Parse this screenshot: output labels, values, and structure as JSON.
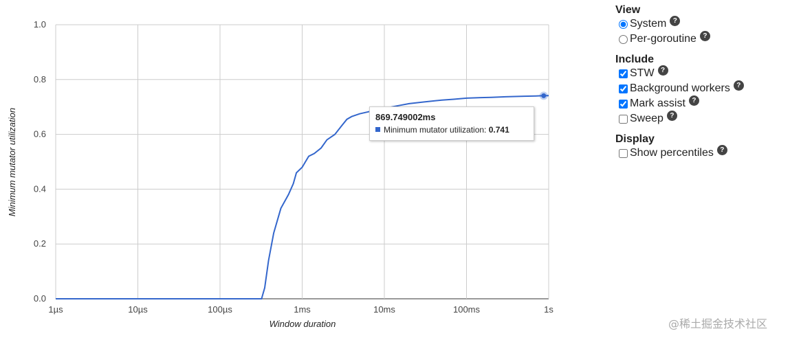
{
  "chart_data": {
    "type": "line",
    "title": "",
    "xlabel": "Window duration",
    "ylabel": "Minimum mutator utilization",
    "x_scale": "log",
    "xlim": [
      "1µs",
      "1s"
    ],
    "x_ticks": [
      "1µs",
      "10µs",
      "100µs",
      "1ms",
      "10ms",
      "100ms",
      "1s"
    ],
    "ylim": [
      0,
      1
    ],
    "y_ticks": [
      "0.0",
      "0.2",
      "0.4",
      "0.6",
      "0.8",
      "1.0"
    ],
    "grid": true,
    "series": [
      {
        "name": "Minimum mutator utilization",
        "color": "#3366cc",
        "x_unit": "s",
        "x": [
          1e-06,
          0.0002,
          0.00032,
          0.00035,
          0.00039,
          0.00045,
          0.00055,
          0.00068,
          0.00078,
          0.00085,
          0.001,
          0.0012,
          0.0014,
          0.0017,
          0.002,
          0.0025,
          0.003,
          0.0035,
          0.004,
          0.005,
          0.007,
          0.01,
          0.015,
          0.02,
          0.03,
          0.05,
          0.07,
          0.1,
          0.15,
          0.2,
          0.3,
          0.5,
          0.7,
          0.87,
          1.0
        ],
        "y": [
          0,
          0,
          0,
          0.04,
          0.14,
          0.24,
          0.33,
          0.38,
          0.42,
          0.46,
          0.48,
          0.52,
          0.53,
          0.55,
          0.58,
          0.6,
          0.63,
          0.655,
          0.665,
          0.675,
          0.685,
          0.695,
          0.705,
          0.712,
          0.718,
          0.725,
          0.728,
          0.732,
          0.734,
          0.735,
          0.737,
          0.739,
          0.74,
          0.741,
          0.741
        ]
      }
    ],
    "highlight": {
      "x": 0.869749002,
      "y": 0.741
    }
  },
  "tooltip": {
    "title": "869.749002ms",
    "label": "Minimum mutator utilization: ",
    "value": "0.741"
  },
  "panel": {
    "view": {
      "title": "View",
      "options": [
        {
          "label": "System",
          "selected": true
        },
        {
          "label": "Per-goroutine",
          "selected": false
        }
      ]
    },
    "include": {
      "title": "Include",
      "options": [
        {
          "label": "STW",
          "checked": true
        },
        {
          "label": "Background workers",
          "checked": true
        },
        {
          "label": "Mark assist",
          "checked": true
        },
        {
          "label": "Sweep",
          "checked": false
        }
      ]
    },
    "display": {
      "title": "Display",
      "options": [
        {
          "label": "Show percentiles",
          "checked": false
        }
      ]
    },
    "help_glyph": "?"
  },
  "watermark": "@稀土掘金技术社区"
}
